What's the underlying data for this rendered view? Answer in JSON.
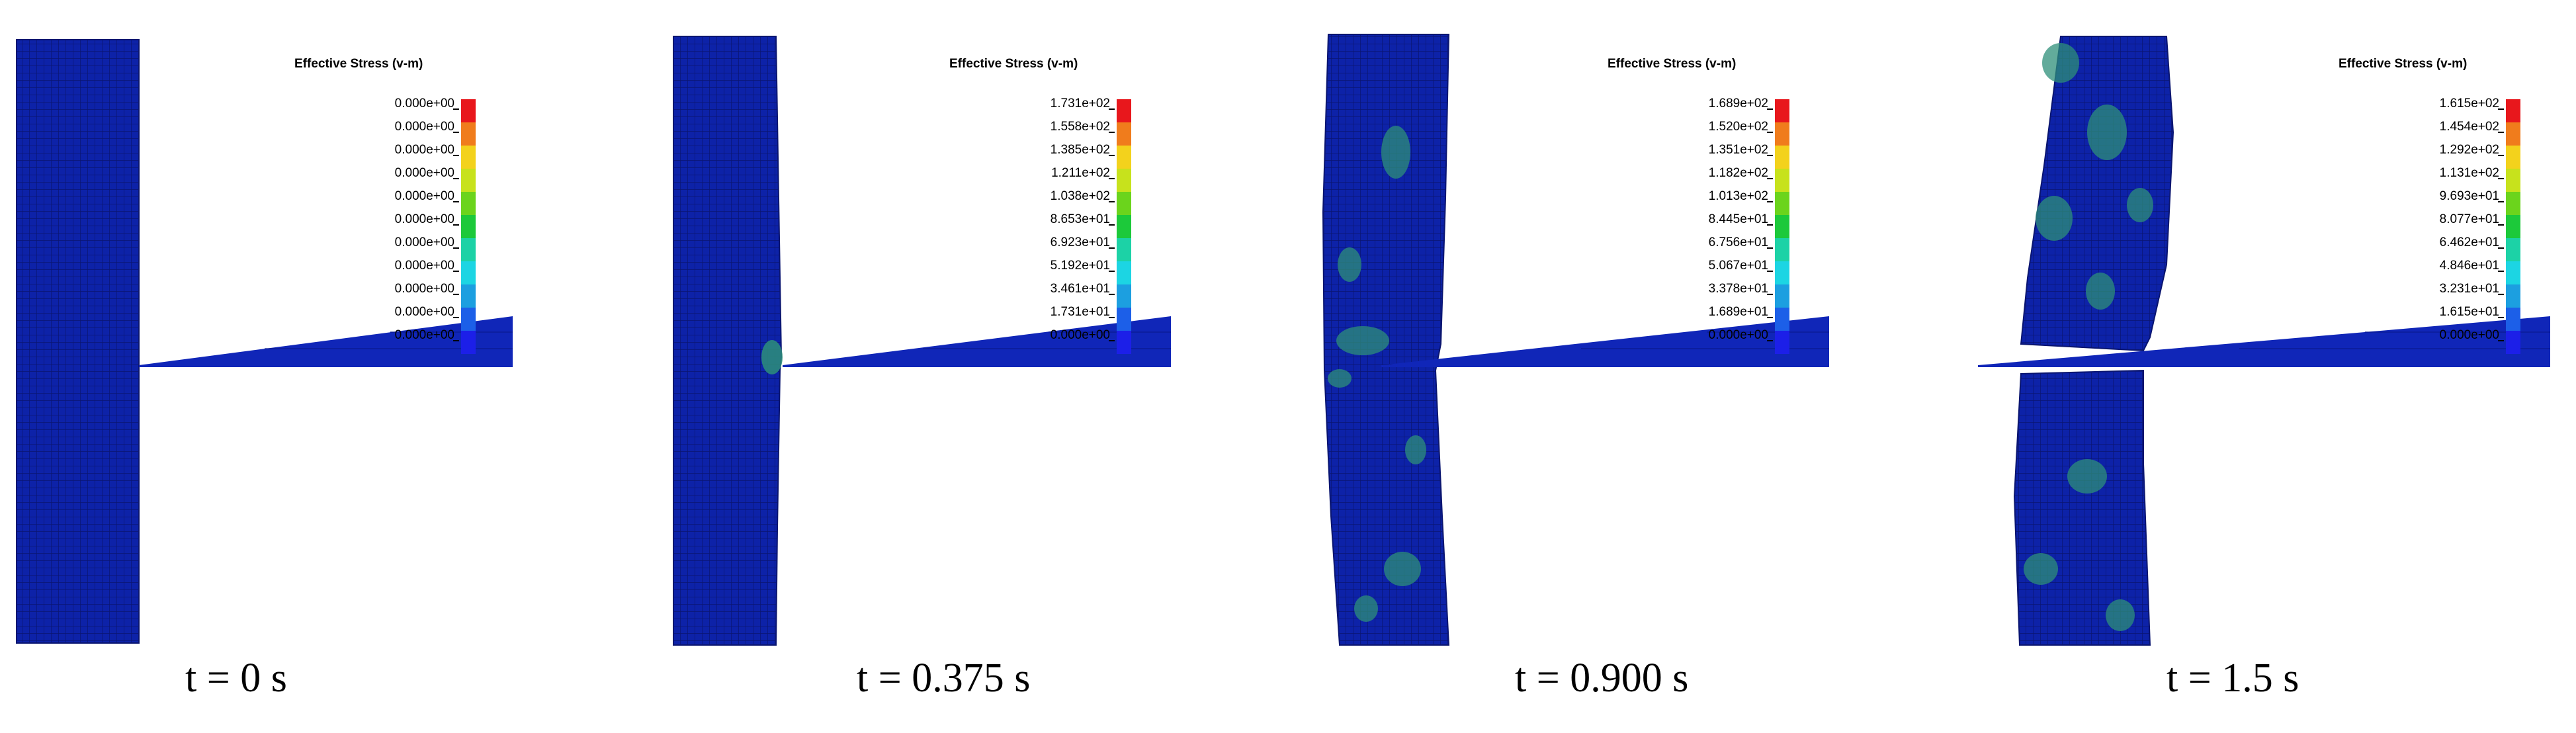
{
  "colors": {
    "background": "#ffffff",
    "mesh_base": "#0d22a8",
    "mesh_line": "#0a1570",
    "stress_hot": "#2e8f7a",
    "blade": "#1026b8"
  },
  "legend_colors": [
    "#e8171c",
    "#f07c1c",
    "#f3d21c",
    "#c7e21c",
    "#6bd41c",
    "#1cc93a",
    "#1cd2a6",
    "#1cd5e3",
    "#1c9fe0",
    "#1c5fe8",
    "#1c1fe8"
  ],
  "panels": [
    {
      "legend_title": "Effective Stress (v-m)",
      "tick_labels": [
        "0.000e+00",
        "0.000e+00",
        "0.000e+00",
        "0.000e+00",
        "0.000e+00",
        "0.000e+00",
        "0.000e+00",
        "0.000e+00",
        "0.000e+00",
        "0.000e+00",
        "0.000e+00"
      ],
      "caption": "t = 0 s"
    },
    {
      "legend_title": "Effective Stress (v-m)",
      "tick_labels": [
        "1.731e+02",
        "1.558e+02",
        "1.385e+02",
        "1.211e+02",
        "1.038e+02",
        "8.653e+01",
        "6.923e+01",
        "5.192e+01",
        "3.461e+01",
        "1.731e+01",
        "0.000e+00"
      ],
      "caption": "t = 0.375 s"
    },
    {
      "legend_title": "Effective Stress (v-m)",
      "tick_labels": [
        "1.689e+02",
        "1.520e+02",
        "1.351e+02",
        "1.182e+02",
        "1.013e+02",
        "8.445e+01",
        "6.756e+01",
        "5.067e+01",
        "3.378e+01",
        "1.689e+01",
        "0.000e+00"
      ],
      "caption": "t = 0.900 s"
    },
    {
      "legend_title": "Effective Stress (v-m)",
      "tick_labels": [
        "1.615e+02",
        "1.454e+02",
        "1.292e+02",
        "1.131e+02",
        "9.693e+01",
        "8.077e+01",
        "6.462e+01",
        "4.846e+01",
        "3.231e+01",
        "1.615e+01",
        "0.000e+00"
      ],
      "caption": "t = 1.5 s"
    }
  ]
}
